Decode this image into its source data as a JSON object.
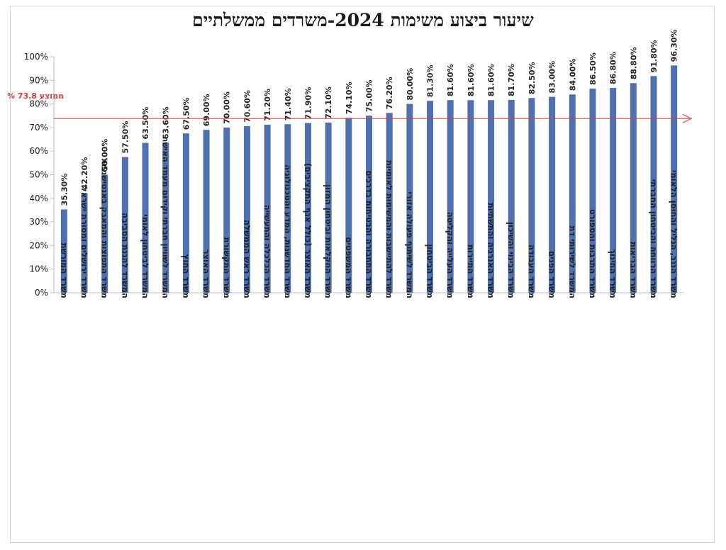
{
  "chart_data": {
    "type": "bar",
    "title": "שיעור ביצוע משימות 2024-משרדים ממשלתיים",
    "categories": [
      "משרד המורשת",
      "משרד ירושלים ומסורת ישראל",
      "משרד התפוצות והמאבק באנטישמיות",
      "המשרד להגנת הסביבה",
      "המשרד לביטחון לאומי",
      "המשרד לשוויון חברתי וקידום מעמד האישה",
      "משרד החוץ",
      "משרד האוצר",
      "משרד התקשורת",
      "משרד ראש הממשלה",
      "משרד הכלכלה והתעשייה",
      "משרד החדשנות, המדע והטכנולוגיה",
      "משרד האוצר (כולל אגף התקציבים)",
      "משרד החקלאות וביטחון המזון",
      "משרד המשפטים",
      "משרד התחבורה והבטיחות בדרכים",
      "משרד להתיישבות והמשימות לאומיות",
      "המשרד לשיתוף פעולה אזורי",
      "משרד הביטחון",
      "משרד העלייה והקליטה",
      "משרד התיירות",
      "משרד האנרגיה והתשתיות",
      "משרד הבינוי והשיכון",
      "משרד העבודה",
      "משרד הפנים",
      "המשרד לשירותי דת",
      "משרד התרבות והספורט",
      "משרד החינוך",
      "משרד הבריאות",
      "משרד הרווחה והביטחון החברתי",
      "משרד הנגב, הגליל והחוסן הלאומי"
    ],
    "values": [
      35.3,
      42.2,
      50.0,
      57.5,
      63.5,
      63.6,
      67.5,
      69.0,
      70.0,
      70.6,
      71.2,
      71.4,
      71.9,
      72.1,
      74.1,
      75.0,
      76.2,
      80.0,
      81.3,
      81.6,
      81.6,
      81.6,
      81.7,
      82.5,
      83.0,
      84.0,
      86.5,
      86.8,
      88.8,
      91.8,
      96.3
    ],
    "value_labels": [
      "35.30%",
      "42.20%",
      "50.00%",
      "57.50%",
      "63.50%",
      "63.60%",
      "67.50%",
      "69.00%",
      "70.00%",
      "70.60%",
      "71.20%",
      "71.40%",
      "71.90%",
      "72.10%",
      "74.10%",
      "75.00%",
      "76.20%",
      "80.00%",
      "81.30%",
      "81.60%",
      "81.60%",
      "81.60%",
      "81.70%",
      "82.50%",
      "83.00%",
      "84.00%",
      "86.50%",
      "86.80%",
      "88.80%",
      "91.80%",
      "96.30%"
    ],
    "y_ticks": [
      "0%",
      "10%",
      "20%",
      "30%",
      "40%",
      "50%",
      "60%",
      "70%",
      "80%",
      "90%",
      "100%"
    ],
    "ylim": [
      0,
      100
    ],
    "average": {
      "value": 73.8,
      "label": "ממוצע 73.8 %"
    },
    "bar_color": "#4f71b0",
    "average_color": "#e03a3a",
    "grid": false,
    "legend": "none"
  }
}
